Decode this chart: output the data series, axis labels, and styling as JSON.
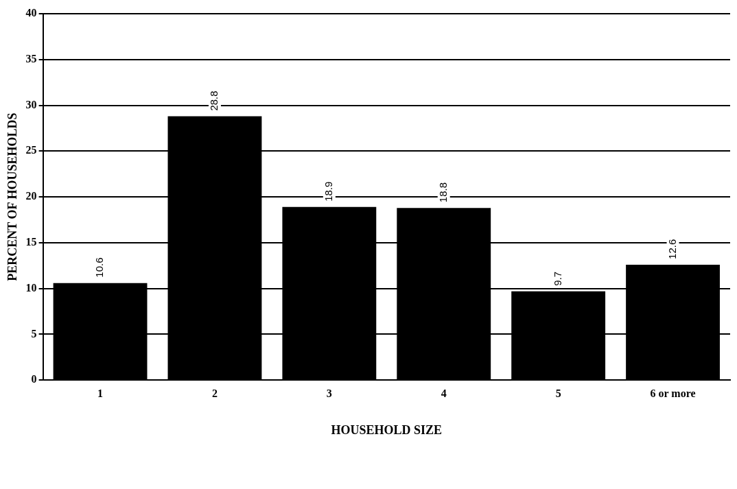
{
  "chart_data": {
    "type": "bar",
    "xlabel": "HOUSEHOLD SIZE",
    "ylabel": "PERCENT OF HOUSEHOLDS",
    "categories": [
      "1",
      "2",
      "3",
      "4",
      "5",
      "6 or more"
    ],
    "values": [
      10.6,
      28.8,
      18.9,
      18.8,
      9.7,
      12.6
    ],
    "color": "#000000",
    "ylim": [
      0,
      40
    ],
    "yticks": [
      0,
      5,
      10,
      15,
      20,
      25,
      30,
      35,
      40
    ],
    "grid": "y",
    "legend": false,
    "data_labels": true
  }
}
